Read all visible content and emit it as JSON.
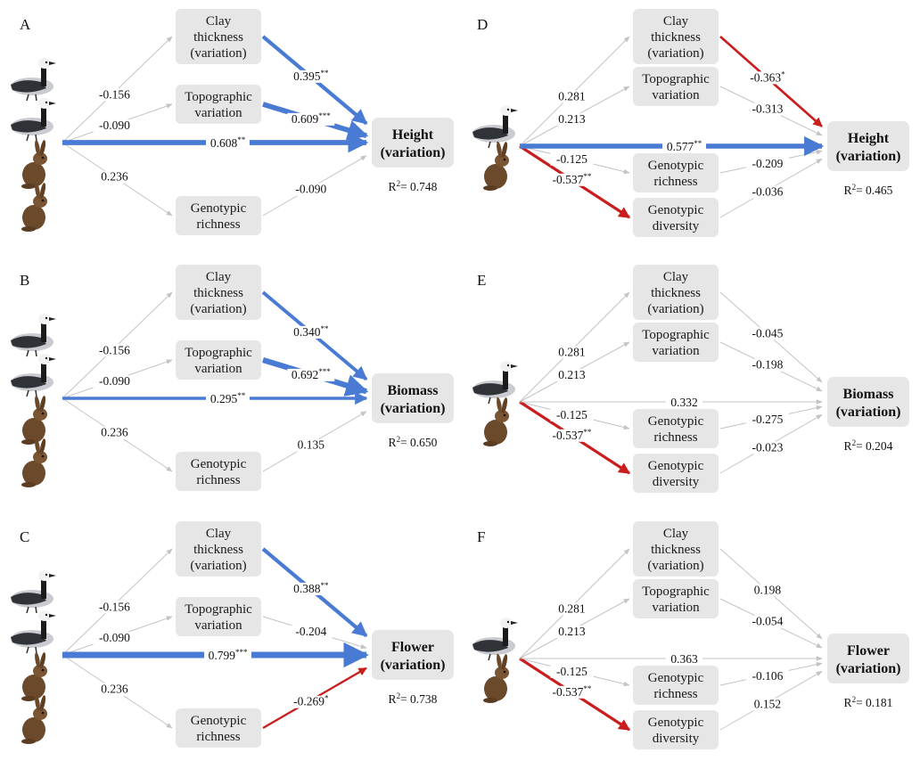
{
  "colors": {
    "positive": "#4a7bd4",
    "negative": "#c81e1e",
    "neutral": "#c4c4c4",
    "box": "#e6e6e6"
  },
  "icons": {
    "predator_icons": [
      "barnacle-goose-icon",
      "hare-icon"
    ]
  },
  "panels": [
    {
      "letter": "A",
      "response": {
        "name": "Height",
        "sub": "(variation)",
        "r2": "0.748"
      },
      "mediators": [
        {
          "lines": [
            "Clay",
            "thickness",
            "(variation)"
          ],
          "a": "-0.156",
          "a_stars": "",
          "a_sig": "ns",
          "b": "0.395",
          "b_stars": "**",
          "b_sig": "pos"
        },
        {
          "lines": [
            "Topographic",
            "variation"
          ],
          "a": "-0.090",
          "a_stars": "",
          "a_sig": "ns",
          "b": "0.609",
          "b_stars": "***",
          "b_sig": "pos"
        },
        {
          "lines": [
            "Genotypic",
            "richness"
          ],
          "a": "0.236",
          "a_stars": "",
          "a_sig": "ns",
          "b": "-0.090",
          "b_stars": "",
          "b_sig": "ns"
        }
      ],
      "direct": {
        "value": "0.608",
        "stars": "**",
        "sig": "pos"
      }
    },
    {
      "letter": "B",
      "response": {
        "name": "Biomass",
        "sub": "(variation)",
        "r2": "0.650"
      },
      "mediators": [
        {
          "lines": [
            "Clay",
            "thickness",
            "(variation)"
          ],
          "a": "-0.156",
          "a_stars": "",
          "a_sig": "ns",
          "b": "0.340",
          "b_stars": "**",
          "b_sig": "pos"
        },
        {
          "lines": [
            "Topographic",
            "variation"
          ],
          "a": "-0.090",
          "a_stars": "",
          "a_sig": "ns",
          "b": "0.692",
          "b_stars": "***",
          "b_sig": "pos"
        },
        {
          "lines": [
            "Genotypic",
            "richness"
          ],
          "a": "0.236",
          "a_stars": "",
          "a_sig": "ns",
          "b": "0.135",
          "b_stars": "",
          "b_sig": "ns"
        }
      ],
      "direct": {
        "value": "0.295",
        "stars": "**",
        "sig": "pos"
      }
    },
    {
      "letter": "C",
      "response": {
        "name": "Flower",
        "sub": "(variation)",
        "r2": "0.738"
      },
      "mediators": [
        {
          "lines": [
            "Clay",
            "thickness",
            "(variation)"
          ],
          "a": "-0.156",
          "a_stars": "",
          "a_sig": "ns",
          "b": "0.388",
          "b_stars": "**",
          "b_sig": "pos"
        },
        {
          "lines": [
            "Topographic",
            "variation"
          ],
          "a": "-0.090",
          "a_stars": "",
          "a_sig": "ns",
          "b": "-0.204",
          "b_stars": "",
          "b_sig": "ns"
        },
        {
          "lines": [
            "Genotypic",
            "richness"
          ],
          "a": "0.236",
          "a_stars": "",
          "a_sig": "ns",
          "b": "-0.269",
          "b_stars": "*",
          "b_sig": "neg"
        }
      ],
      "direct": {
        "value": "0.799",
        "stars": "***",
        "sig": "pos"
      }
    },
    {
      "letter": "D",
      "response": {
        "name": "Height",
        "sub": "(variation)",
        "r2": "0.465"
      },
      "mediators": [
        {
          "lines": [
            "Clay",
            "thickness",
            "(variation)"
          ],
          "a": "0.281",
          "a_stars": "",
          "a_sig": "ns",
          "b": "-0.363",
          "b_stars": "*",
          "b_sig": "neg"
        },
        {
          "lines": [
            "Topographic",
            "variation"
          ],
          "a": "0.213",
          "a_stars": "",
          "a_sig": "ns",
          "b": "-0.313",
          "b_stars": "",
          "b_sig": "ns"
        },
        {
          "lines": [
            "Genotypic",
            "richness"
          ],
          "a": "-0.125",
          "a_stars": "",
          "a_sig": "ns",
          "b": "-0.209",
          "b_stars": "",
          "b_sig": "ns"
        },
        {
          "lines": [
            "Genotypic",
            "diversity"
          ],
          "a": "-0.537",
          "a_stars": "**",
          "a_sig": "neg",
          "b": "-0.036",
          "b_stars": "",
          "b_sig": "ns"
        }
      ],
      "direct": {
        "value": "0.577",
        "stars": "**",
        "sig": "pos"
      }
    },
    {
      "letter": "E",
      "response": {
        "name": "Biomass",
        "sub": "(variation)",
        "r2": "0.204"
      },
      "mediators": [
        {
          "lines": [
            "Clay",
            "thickness",
            "(variation)"
          ],
          "a": "0.281",
          "a_stars": "",
          "a_sig": "ns",
          "b": "-0.045",
          "b_stars": "",
          "b_sig": "ns"
        },
        {
          "lines": [
            "Topographic",
            "variation"
          ],
          "a": "0.213",
          "a_stars": "",
          "a_sig": "ns",
          "b": "-0.198",
          "b_stars": "",
          "b_sig": "ns"
        },
        {
          "lines": [
            "Genotypic",
            "richness"
          ],
          "a": "-0.125",
          "a_stars": "",
          "a_sig": "ns",
          "b": "-0.275",
          "b_stars": "",
          "b_sig": "ns"
        },
        {
          "lines": [
            "Genotypic",
            "diversity"
          ],
          "a": "-0.537",
          "a_stars": "**",
          "a_sig": "neg",
          "b": "-0.023",
          "b_stars": "",
          "b_sig": "ns"
        }
      ],
      "direct": {
        "value": "0.332",
        "stars": "",
        "sig": "ns"
      }
    },
    {
      "letter": "F",
      "response": {
        "name": "Flower",
        "sub": "(variation)",
        "r2": "0.181"
      },
      "mediators": [
        {
          "lines": [
            "Clay",
            "thickness",
            "(variation)"
          ],
          "a": "0.281",
          "a_stars": "",
          "a_sig": "ns",
          "b": "0.198",
          "b_stars": "",
          "b_sig": "ns"
        },
        {
          "lines": [
            "Topographic",
            "variation"
          ],
          "a": "0.213",
          "a_stars": "",
          "a_sig": "ns",
          "b": "-0.054",
          "b_stars": "",
          "b_sig": "ns"
        },
        {
          "lines": [
            "Genotypic",
            "richness"
          ],
          "a": "-0.125",
          "a_stars": "",
          "a_sig": "ns",
          "b": "-0.106",
          "b_stars": "",
          "b_sig": "ns"
        },
        {
          "lines": [
            "Genotypic",
            "diversity"
          ],
          "a": "-0.537",
          "a_stars": "**",
          "a_sig": "neg",
          "b": "0.152",
          "b_stars": "",
          "b_sig": "ns"
        }
      ],
      "direct": {
        "value": "0.363",
        "stars": "",
        "sig": "ns"
      }
    }
  ]
}
